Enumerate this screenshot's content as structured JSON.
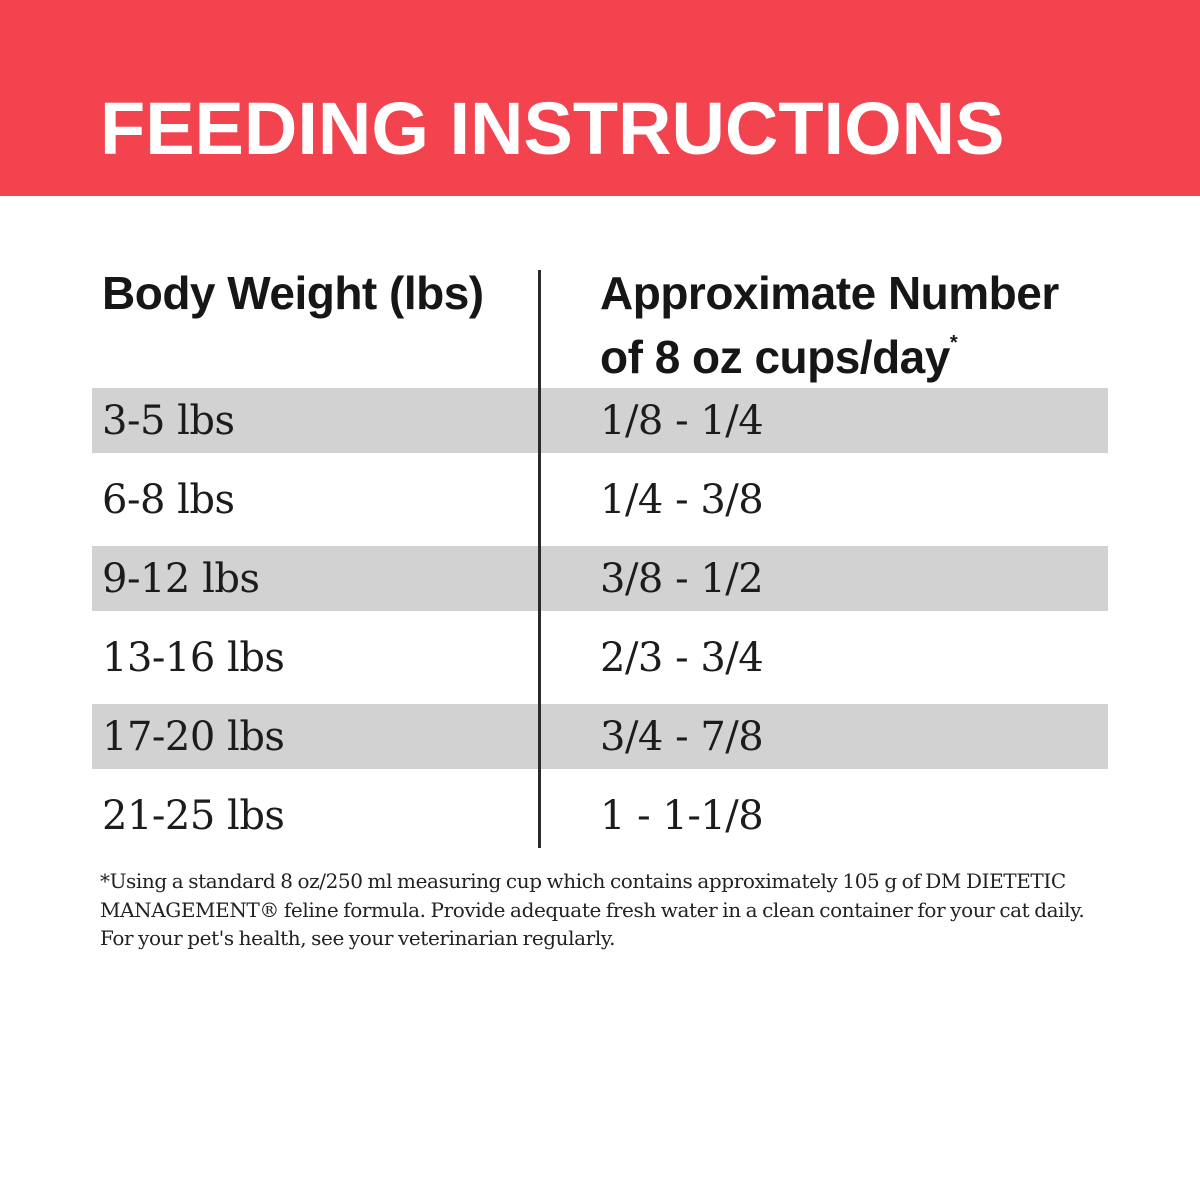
{
  "header": {
    "title": "FEEDING INSTRUCTIONS",
    "background_color": "#F2434F",
    "text_color": "#FFFFFF"
  },
  "table": {
    "columns": [
      {
        "label": "Body Weight (lbs)"
      },
      {
        "label_line1": "Approximate Number",
        "label_line2": "of 8 oz cups/day",
        "footnote_marker": "*"
      }
    ],
    "rows": [
      {
        "weight": "3-5 lbs",
        "cups": "1/8 - 1/4",
        "shaded": true
      },
      {
        "weight": "6-8 lbs",
        "cups": "1/4 - 3/8",
        "shaded": false
      },
      {
        "weight": "9-12 lbs",
        "cups": "3/8 - 1/2",
        "shaded": true
      },
      {
        "weight": "13-16 lbs",
        "cups": "2/3 - 3/4",
        "shaded": false
      },
      {
        "weight": "17-20 lbs",
        "cups": "3/4 - 7/8",
        "shaded": true
      },
      {
        "weight": "21-25 lbs",
        "cups": "1 - 1-1/8",
        "shaded": false
      }
    ],
    "stripe_color": "#D2D2D2",
    "divider_color": "#2B2B2B",
    "text_color": "#1C1C1C"
  },
  "footnote": {
    "text": "*Using a standard 8 oz/250 ml measuring cup which contains approximately 105 g of DM DIETETIC MANAGEMENT® feline formula. Provide adequate fresh water in a clean container for your cat daily. For your pet's health, see your veterinarian regularly."
  }
}
